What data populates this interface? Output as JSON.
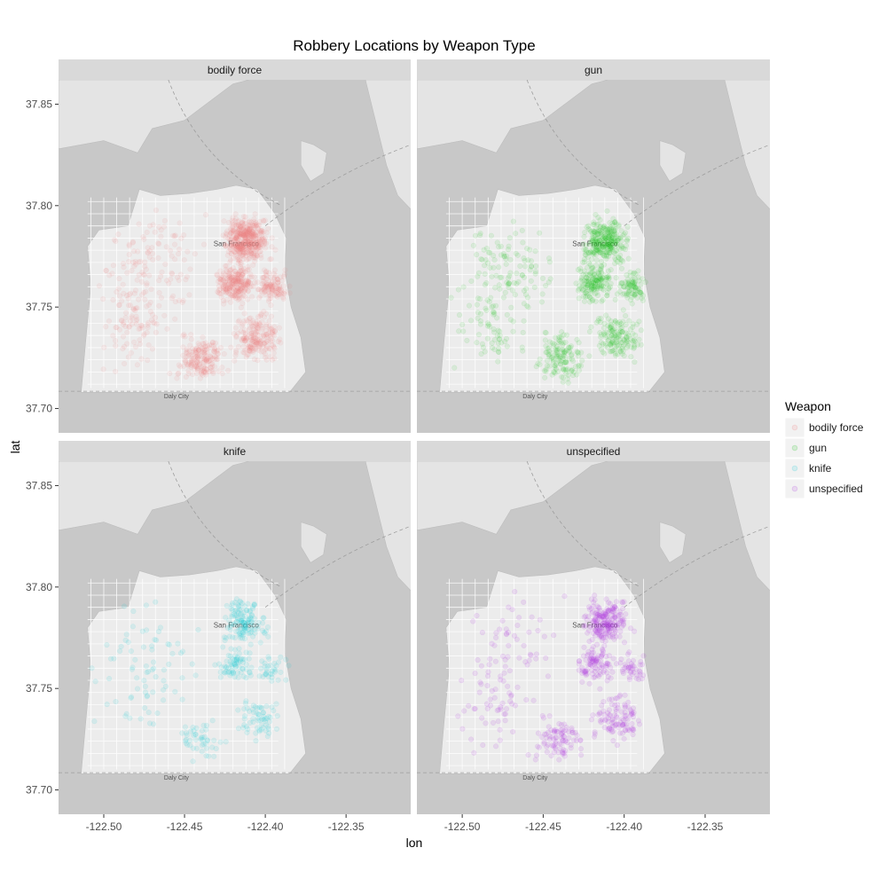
{
  "chart_data": {
    "type": "scatter",
    "title": "Robbery Locations by Weapon Type",
    "xlabel": "lon",
    "ylabel": "lat",
    "xlim": [
      -122.528,
      -122.31
    ],
    "ylim": [
      37.688,
      37.862
    ],
    "x_ticks": [
      -122.5,
      -122.45,
      -122.4,
      -122.35
    ],
    "x_tick_labels": [
      "-122.50",
      "-122.45",
      "-122.40",
      "-122.35"
    ],
    "y_ticks": [
      37.7,
      37.75,
      37.8,
      37.85
    ],
    "y_tick_labels": [
      "37.70",
      "37.75",
      "37.80",
      "37.85"
    ],
    "grid": false,
    "legend": {
      "title": "Weapon",
      "placement": "right",
      "entries": [
        "bodily force",
        "gun",
        "knife",
        "unspecified"
      ]
    },
    "facets": [
      {
        "label": "bodily force",
        "color": "#f08080"
      },
      {
        "label": "gun",
        "color": "#22c022"
      },
      {
        "label": "knife",
        "color": "#22ccd8"
      },
      {
        "label": "unspecified",
        "color": "#b040e0"
      }
    ],
    "basemap_labels": {
      "city": "San Francisco",
      "daly_city": "Daly City"
    }
  }
}
